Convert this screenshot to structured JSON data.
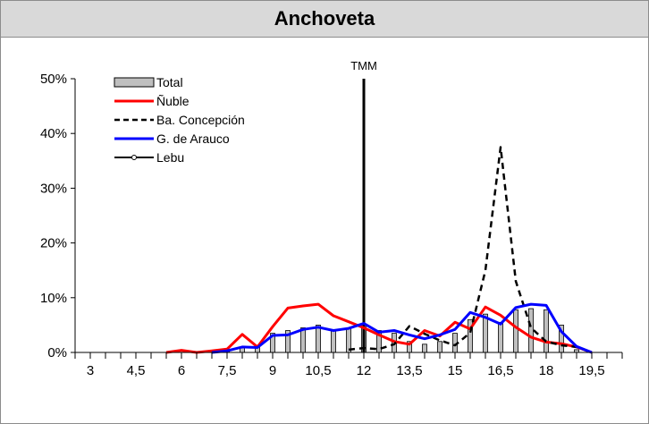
{
  "chart_data": {
    "type": "line",
    "title": "Anchoveta",
    "xlabel": "",
    "ylabel": "",
    "xlim": [
      2.5,
      20.5
    ],
    "ylim": [
      0,
      0.5
    ],
    "x_ticks": [
      "3",
      "4,5",
      "6",
      "7,5",
      "9",
      "10,5",
      "12",
      "13,5",
      "15",
      "16,5",
      "18",
      "19,5"
    ],
    "x_tick_values": [
      3,
      4.5,
      6,
      7.5,
      9,
      10.5,
      12,
      13.5,
      15,
      16.5,
      18,
      19.5
    ],
    "y_ticks": [
      "0%",
      "10%",
      "20%",
      "30%",
      "40%",
      "50%"
    ],
    "y_tick_values": [
      0,
      0.1,
      0.2,
      0.3,
      0.4,
      0.5
    ],
    "legend_position": "top-left",
    "reference_line": {
      "label": "TMM",
      "x": 12
    },
    "bars": {
      "name": "Total",
      "x": [
        7.5,
        8,
        8.5,
        9,
        9.5,
        10,
        10.5,
        11,
        11.5,
        12,
        12.5,
        13,
        13.5,
        14,
        14.5,
        15,
        15.5,
        16,
        16.5,
        17,
        17.5,
        18,
        18.5,
        19
      ],
      "values": [
        0.005,
        0.01,
        0.012,
        0.035,
        0.04,
        0.045,
        0.05,
        0.04,
        0.045,
        0.05,
        0.04,
        0.035,
        0.02,
        0.015,
        0.02,
        0.035,
        0.06,
        0.07,
        0.055,
        0.078,
        0.08,
        0.078,
        0.05,
        0.005
      ]
    },
    "series": [
      {
        "name": "Ñuble",
        "color": "#ff0000",
        "style": "solid",
        "x": [
          5.5,
          6,
          6.5,
          7,
          7.5,
          8,
          8.5,
          9,
          9.5,
          10,
          10.5,
          11,
          11.5,
          12,
          12.5,
          13,
          13.5,
          14,
          14.5,
          15,
          15.5,
          16,
          16.5,
          17,
          17.5,
          18,
          18.5,
          19,
          19.5
        ],
        "values": [
          0,
          0.004,
          0,
          0.003,
          0.006,
          0.033,
          0.01,
          0.047,
          0.081,
          0.085,
          0.088,
          0.067,
          0.056,
          0.045,
          0.032,
          0.02,
          0.015,
          0.04,
          0.03,
          0.055,
          0.043,
          0.083,
          0.068,
          0.046,
          0.028,
          0.019,
          0.016,
          0.01,
          0
        ]
      },
      {
        "name": "Ba. Concepción",
        "color": "#000000",
        "style": "dashed",
        "x": [
          11.5,
          12,
          12.5,
          13,
          13.5,
          14,
          14.5,
          15,
          15.5,
          16,
          16.5,
          17,
          17.5,
          18,
          18.5,
          19,
          19.5
        ],
        "values": [
          0.005,
          0.008,
          0.006,
          0.015,
          0.048,
          0.034,
          0.022,
          0.013,
          0.036,
          0.15,
          0.375,
          0.13,
          0.045,
          0.02,
          0.013,
          0.01,
          0
        ]
      },
      {
        "name": "G. de Arauco",
        "color": "#0000ff",
        "style": "solid",
        "x": [
          7,
          7.5,
          8,
          8.5,
          9,
          9.5,
          10,
          10.5,
          11,
          11.5,
          12,
          12.5,
          13,
          13.5,
          14,
          14.5,
          15,
          15.5,
          16,
          16.5,
          17,
          17.5,
          18,
          18.5,
          19,
          19.5
        ],
        "values": [
          0,
          0.003,
          0.01,
          0.009,
          0.031,
          0.032,
          0.042,
          0.046,
          0.04,
          0.044,
          0.053,
          0.037,
          0.04,
          0.032,
          0.025,
          0.032,
          0.042,
          0.073,
          0.064,
          0.052,
          0.082,
          0.088,
          0.086,
          0.038,
          0.011,
          0
        ]
      },
      {
        "name": "Lebu",
        "color": "#000000",
        "style": "solid-marker",
        "x": [],
        "values": []
      }
    ]
  }
}
